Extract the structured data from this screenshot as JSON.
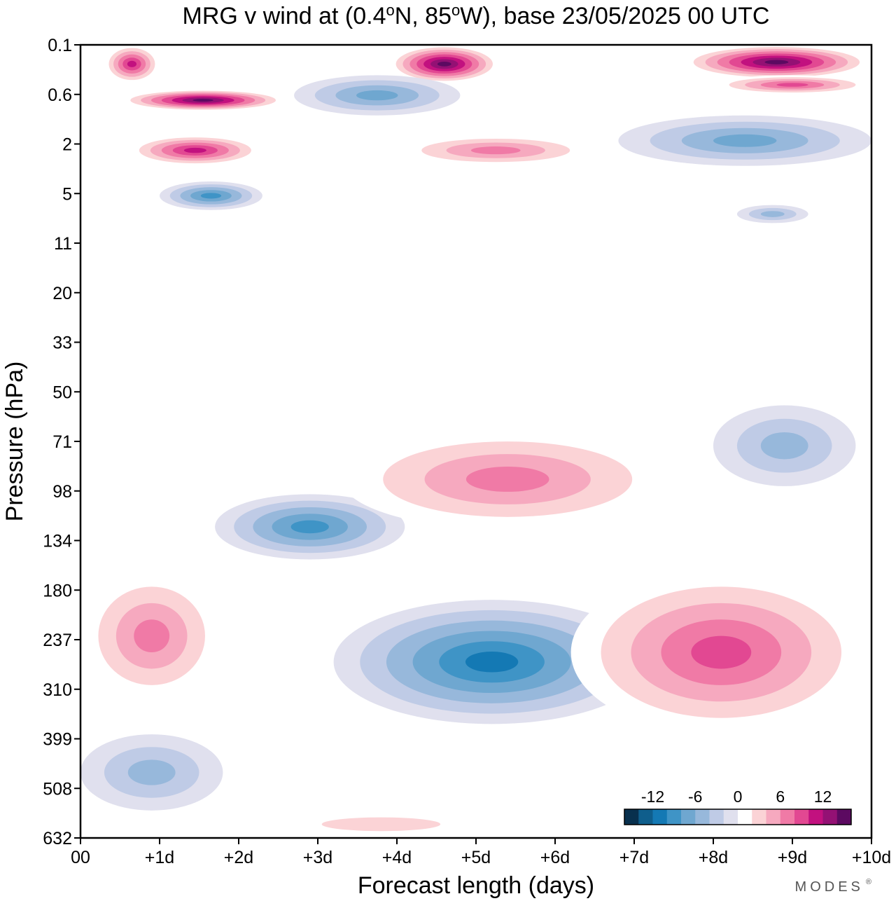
{
  "chart_data": {
    "type": "heatmap",
    "title": "MRG v wind at (0.4°N, 85°W),  base 23/05/2025  00 UTC",
    "title_parts": {
      "prefix": "MRG v wind at (0.4",
      "deg1": "o",
      "mid": "N, 85",
      "deg2": "o",
      "suffix": "W),  base 23/05/2025  00 UTC"
    },
    "xlabel": "Forecast length (days)",
    "ylabel": "Pressure (hPa)",
    "x_ticks": [
      "00",
      "+1d",
      "+2d",
      "+3d",
      "+4d",
      "+5d",
      "+6d",
      "+7d",
      "+8d",
      "+9d",
      "+10d"
    ],
    "xlim_days": [
      0,
      10
    ],
    "y_ticks": [
      "0.1",
      "0.6",
      "2",
      "5",
      "11",
      "20",
      "33",
      "50",
      "71",
      "98",
      "134",
      "180",
      "237",
      "310",
      "399",
      "508",
      "632"
    ],
    "ylim_hpa": [
      0.1,
      632
    ],
    "y_order": "top-to-bottom",
    "legend_position": "bottom-right",
    "colorbar": {
      "tick_labels": [
        "-12",
        "-6",
        "0",
        "6",
        "12"
      ],
      "tick_values": [
        -12,
        -6,
        0,
        6,
        12
      ],
      "range": [
        -16,
        16
      ],
      "step": 2,
      "colors": [
        "#08304e",
        "#0f5e8c",
        "#1479b4",
        "#3f94c6",
        "#6fa7d0",
        "#97b8db",
        "#bfcbe6",
        "#e0e0ee",
        "#ffffff",
        "#fbd3d6",
        "#f6a9bf",
        "#f07aa6",
        "#e24892",
        "#c2117f",
        "#941174",
        "#5c0a61"
      ]
    },
    "features": [
      {
        "x": [
          0.3,
          1.0
        ],
        "p": [
          0.1,
          0.4
        ],
        "value": 12
      },
      {
        "x": [
          0.5,
          2.6
        ],
        "p": [
          0.5,
          0.9
        ],
        "value": 15
      },
      {
        "x": [
          3.9,
          5.3
        ],
        "p": [
          0.1,
          0.4
        ],
        "value": 16
      },
      {
        "x": [
          7.6,
          10.0
        ],
        "p": [
          0.1,
          0.35
        ],
        "value": 16
      },
      {
        "x": [
          8.0,
          10.0
        ],
        "p": [
          0.3,
          0.6
        ],
        "value": 9
      },
      {
        "x": [
          2.7,
          4.8
        ],
        "p": [
          0.3,
          1.0
        ],
        "value": -7
      },
      {
        "x": [
          6.8,
          10.0
        ],
        "p": [
          1.0,
          3.0
        ],
        "value": -8
      },
      {
        "x": [
          0.6,
          2.3
        ],
        "p": [
          1.6,
          3.0
        ],
        "value": 11
      },
      {
        "x": [
          4.0,
          6.5
        ],
        "p": [
          1.6,
          3.0
        ],
        "value": 7
      },
      {
        "x": [
          1.0,
          2.3
        ],
        "p": [
          4.0,
          6.5
        ],
        "value": -9
      },
      {
        "x": [
          8.3,
          9.2
        ],
        "p": [
          6.0,
          8.0
        ],
        "value": -6
      },
      {
        "x": [
          1.7,
          4.1
        ],
        "p": [
          100,
          150
        ],
        "value": -10
      },
      {
        "x": [
          3.3,
          7.5
        ],
        "p": [
          65,
          125
        ],
        "value": 7
      },
      {
        "x": [
          8.0,
          9.8
        ],
        "p": [
          55,
          95
        ],
        "value": -6
      },
      {
        "x": [
          3.2,
          7.2
        ],
        "p": [
          190,
          370
        ],
        "value": -12
      },
      {
        "x": [
          0.0,
          1.8
        ],
        "p": [
          160,
          330
        ],
        "value": 8
      },
      {
        "x": [
          6.2,
          10.0
        ],
        "p": [
          160,
          390
        ],
        "value": 9
      },
      {
        "x": [
          0.0,
          1.8
        ],
        "p": [
          390,
          560
        ],
        "value": -6
      },
      {
        "x": [
          2.3,
          5.3
        ],
        "p": [
          560,
          632
        ],
        "value": 3
      }
    ]
  },
  "brand": {
    "text": "MODES",
    "mark": "®"
  }
}
